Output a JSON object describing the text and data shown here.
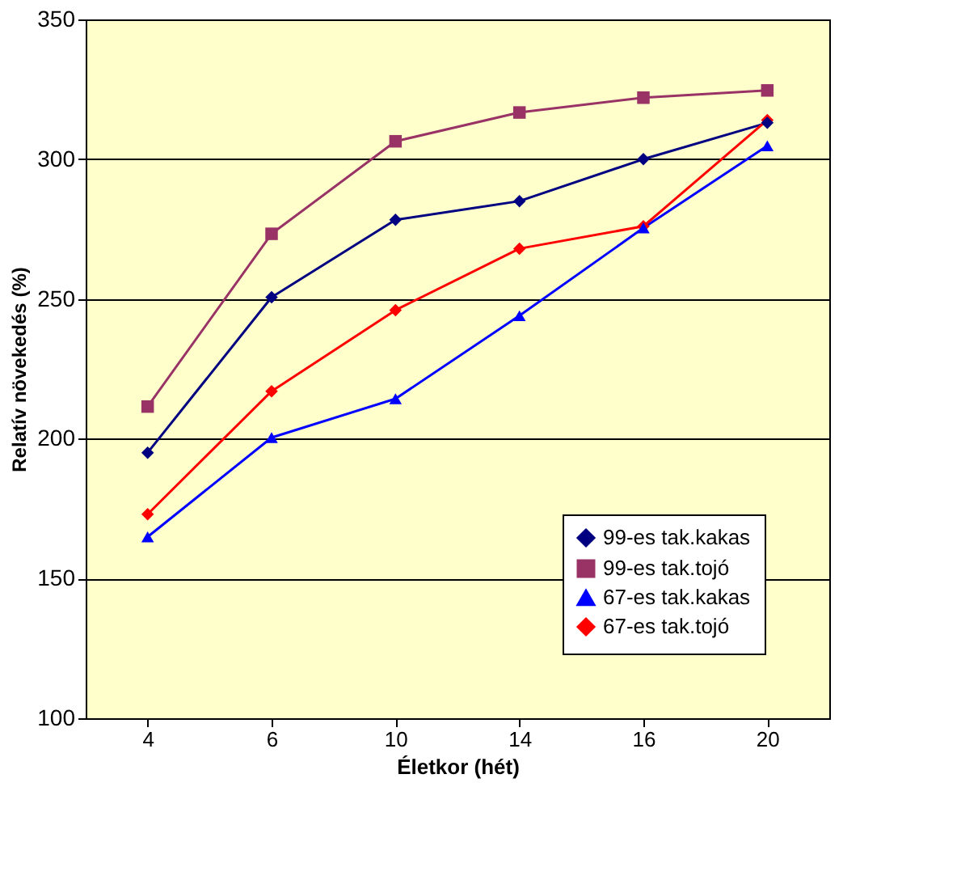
{
  "chart_data": {
    "type": "line",
    "xlabel": "Életkor (hét)",
    "ylabel": "Relatív növekedés (%)",
    "categories": [
      "4",
      "6",
      "10",
      "14",
      "16",
      "20"
    ],
    "series": [
      {
        "name": "99-es tak.kakas",
        "color": "#000080",
        "marker": "diamond",
        "values": [
          195,
          250.6,
          278.3,
          285,
          300,
          313
        ]
      },
      {
        "name": "99-es tak.tojó",
        "color": "#993366",
        "marker": "square",
        "values": [
          211.5,
          273.3,
          306.4,
          316.7,
          322,
          324.6
        ]
      },
      {
        "name": "67-es tak.kakas",
        "color": "#0000ff",
        "marker": "triangle",
        "values": [
          164.9,
          200.4,
          214.3,
          244,
          275.4,
          304.8
        ]
      },
      {
        "name": "67-es tak.tojó",
        "color": "#ff0000",
        "marker": "diamond",
        "values": [
          173,
          217,
          246,
          268,
          276,
          314
        ]
      }
    ],
    "ylim": [
      100,
      350
    ],
    "yticks": [
      100,
      150,
      200,
      250,
      300,
      350
    ],
    "grid": "y",
    "legend": "bottom right"
  }
}
